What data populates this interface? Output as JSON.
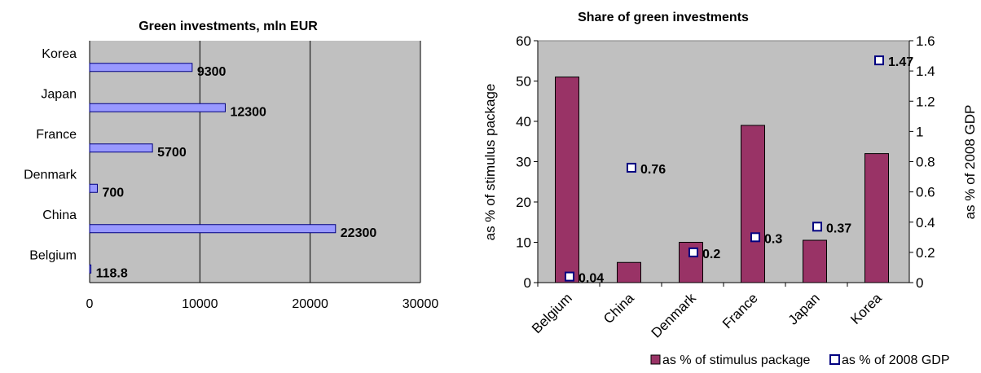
{
  "chart_data": [
    {
      "type": "bar",
      "orientation": "horizontal",
      "title": "Green investments, mln EUR",
      "categories": [
        "Belgium",
        "China",
        "Denmark",
        "France",
        "Japan",
        "Korea"
      ],
      "values": [
        118.8,
        22300,
        700,
        5700,
        12300,
        9300
      ],
      "data_labels": [
        "118.8",
        "22300",
        "700",
        "5700",
        "12300",
        "9300"
      ],
      "xlim": [
        0,
        30000
      ],
      "x_ticks": [
        "0",
        "10000",
        "20000",
        "30000"
      ],
      "xlabel": "",
      "ylabel": "",
      "grid": "vertical",
      "legend": "none",
      "colors": {
        "bar_fill": "#9999ff",
        "bar_stroke": "#000080",
        "plot_bg": "#c0c0c0"
      }
    },
    {
      "type": "bar",
      "title": "Share of green investments",
      "categories": [
        "Belgium",
        "China",
        "Denmark",
        "France",
        "Japan",
        "Korea"
      ],
      "series": [
        {
          "name": "as % of stimulus package",
          "type": "bar",
          "axis": "left",
          "values": [
            51,
            5,
            10,
            39,
            10.5,
            32
          ],
          "color": "#993366"
        },
        {
          "name": "as % of 2008 GDP",
          "type": "scatter",
          "axis": "right",
          "values": [
            0.04,
            0.76,
            0.2,
            0.3,
            0.37,
            1.47
          ],
          "data_labels": [
            "0.04",
            "0.76",
            "0.2",
            "0.3",
            "0.37",
            "1.47"
          ],
          "color": "#000080"
        }
      ],
      "ylabel": "as % of stimulus package",
      "ylabel_right": "as % of 2008 GDP",
      "ylim": [
        0,
        60
      ],
      "ylim_right": [
        0,
        1.6
      ],
      "y_ticks": [
        "0",
        "10",
        "20",
        "30",
        "40",
        "50",
        "60"
      ],
      "y_ticks_right": [
        "0",
        "0.2",
        "0.4",
        "0.6",
        "0.8",
        "1",
        "1.2",
        "1.4",
        "1.6"
      ],
      "grid": "none",
      "legend": "bottom",
      "colors": {
        "plot_bg": "#c0c0c0"
      }
    }
  ]
}
